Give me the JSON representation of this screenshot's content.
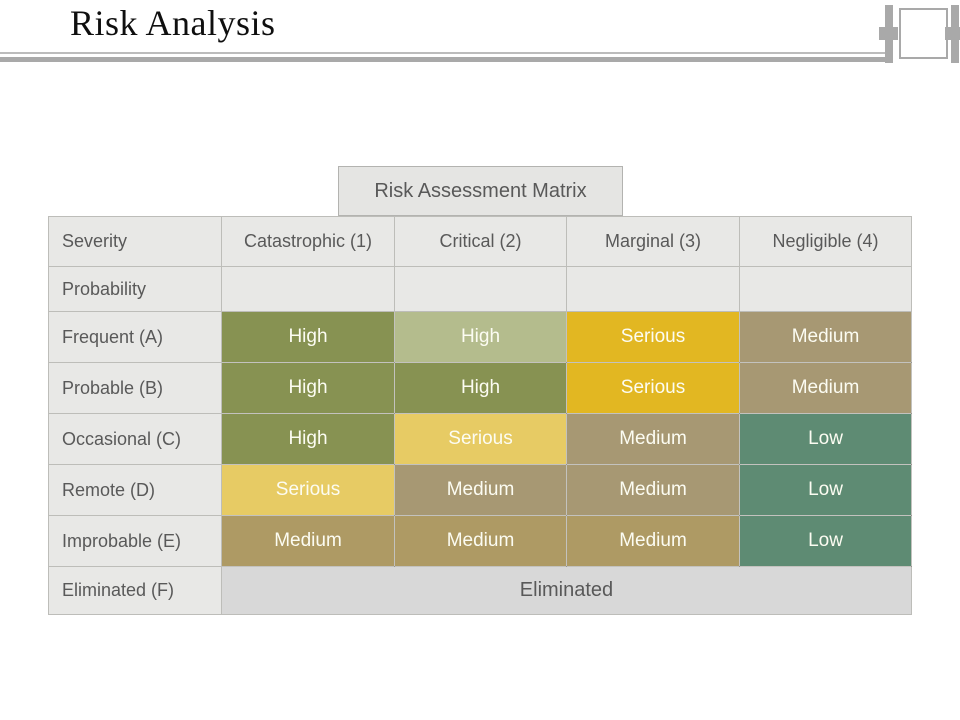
{
  "slide": {
    "title": "Risk Analysis"
  },
  "matrix": {
    "heading": "Risk Assessment Matrix",
    "columns": [
      "Severity",
      "Catastrophic (1)",
      "Critical (2)",
      "Marginal (3)",
      "Negligible (4)"
    ],
    "probability_label": "Probability",
    "rows": [
      {
        "label": "Frequent (A)",
        "cells": [
          {
            "text": "High",
            "color": "high"
          },
          {
            "text": "High",
            "color": "high_light"
          },
          {
            "text": "Serious",
            "color": "serious"
          },
          {
            "text": "Medium",
            "color": "medium"
          }
        ]
      },
      {
        "label": "Probable (B)",
        "cells": [
          {
            "text": "High",
            "color": "high"
          },
          {
            "text": "High",
            "color": "high"
          },
          {
            "text": "Serious",
            "color": "serious"
          },
          {
            "text": "Medium",
            "color": "medium"
          }
        ]
      },
      {
        "label": "Occasional (C)",
        "cells": [
          {
            "text": "High",
            "color": "high"
          },
          {
            "text": "Serious",
            "color": "serious_light"
          },
          {
            "text": "Medium",
            "color": "medium"
          },
          {
            "text": "Low",
            "color": "low"
          }
        ]
      },
      {
        "label": "Remote (D)",
        "cells": [
          {
            "text": "Serious",
            "color": "serious_light"
          },
          {
            "text": "Medium",
            "color": "medium"
          },
          {
            "text": "Medium",
            "color": "medium"
          },
          {
            "text": "Low",
            "color": "low"
          }
        ]
      },
      {
        "label": "Improbable (E)",
        "cells": [
          {
            "text": "Medium",
            "color": "medium_gold"
          },
          {
            "text": "Medium",
            "color": "medium_gold"
          },
          {
            "text": "Medium",
            "color": "medium_gold"
          },
          {
            "text": "Low",
            "color": "low"
          }
        ]
      }
    ],
    "eliminated": {
      "label": "Eliminated (F)",
      "value": "Eliminated"
    },
    "colors": {
      "high": "#879252",
      "high_light": "#b4bc8d",
      "serious": "#e2b722",
      "serious_light": "#e7cb64",
      "medium": "#a79873",
      "medium_gold": "#ae9a64",
      "low": "#5e8b73"
    }
  }
}
